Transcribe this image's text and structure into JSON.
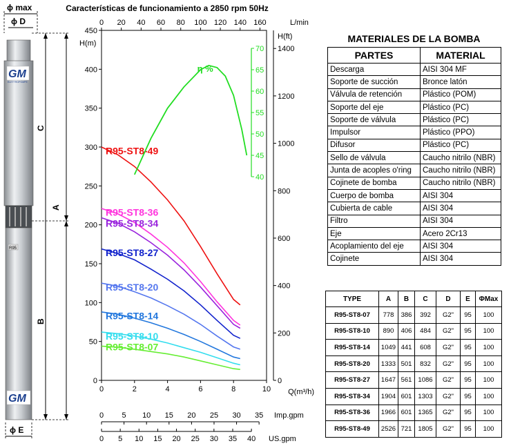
{
  "pump_drawing": {
    "label_phi_max": "ϕ max",
    "label_phi_d": "ϕ D",
    "label_phi_e": "ϕ E",
    "label_a": "A",
    "label_b": "B",
    "label_c": "C",
    "brand_text": "GM",
    "brand_subtext": "ELETTROPOMPE",
    "nameplate_text": "R95",
    "body_color": "#c7cbcf",
    "logo_color": "#1b3f8e"
  },
  "chart_data": {
    "type": "line",
    "title": "Características de funcionamiento a 2850 rpm 50Hz",
    "x_primary": {
      "label": "Q(m³/h)",
      "range": [
        0,
        10
      ],
      "ticks": [
        0,
        2,
        4,
        6,
        8,
        10
      ]
    },
    "x_top": {
      "label": "L/min",
      "range": [
        0,
        166.7
      ],
      "ticks": [
        0,
        20,
        40,
        60,
        80,
        100,
        120,
        140,
        160
      ]
    },
    "x_imp_gpm": {
      "label": "Imp.gpm",
      "ticks": [
        0,
        5,
        10,
        15,
        20,
        25,
        30,
        35
      ]
    },
    "x_us_gpm": {
      "label": "US.gpm",
      "ticks": [
        0,
        5,
        10,
        15,
        20,
        25,
        30,
        35,
        40
      ]
    },
    "y_left": {
      "label": "H(m)",
      "range": [
        0,
        450
      ],
      "ticks": [
        0,
        50,
        100,
        150,
        200,
        250,
        300,
        350,
        400,
        450
      ]
    },
    "y_right": {
      "label": "H(ft)",
      "ticks": [
        0,
        200,
        400,
        600,
        800,
        1000,
        1200,
        1400
      ]
    },
    "y_eff": {
      "label": "η %",
      "range": [
        40,
        70
      ],
      "ticks": [
        40,
        45,
        50,
        55,
        60,
        65,
        70
      ],
      "color": "#22dd22"
    },
    "series": [
      {
        "name": "R95-ST8-49",
        "color": "#ee1111",
        "x": [
          0,
          1,
          2,
          3,
          4,
          5,
          6,
          7,
          8,
          8.4
        ],
        "y": [
          300,
          290,
          275,
          255,
          232,
          205,
          172,
          137,
          104,
          97
        ]
      },
      {
        "name": "R95-ST8-36",
        "color": "#ff33dd",
        "x": [
          0,
          1,
          2,
          3,
          4,
          5,
          6,
          7,
          8,
          8.4
        ],
        "y": [
          221,
          214,
          203,
          188,
          171,
          151,
          127,
          101,
          77,
          71
        ]
      },
      {
        "name": "R95-ST8-34",
        "color": "#9922dd",
        "x": [
          0,
          1,
          2,
          3,
          4,
          5,
          6,
          7,
          8,
          8.4
        ],
        "y": [
          209,
          202,
          191,
          177,
          161,
          142,
          120,
          96,
          72,
          67
        ]
      },
      {
        "name": "R95-ST8-27",
        "color": "#1122cc",
        "x": [
          0,
          1,
          2,
          3,
          4,
          5,
          6,
          7,
          8,
          8.4
        ],
        "y": [
          169,
          163,
          155,
          143,
          130,
          115,
          97,
          77,
          58,
          54
        ]
      },
      {
        "name": "R95-ST8-20",
        "color": "#5577ee",
        "x": [
          0,
          1,
          2,
          3,
          4,
          5,
          6,
          7,
          8,
          8.4
        ],
        "y": [
          125,
          121,
          114,
          106,
          96,
          85,
          72,
          57,
          43,
          40
        ]
      },
      {
        "name": "R95-ST8-14",
        "color": "#2277dd",
        "x": [
          0,
          1,
          2,
          3,
          4,
          5,
          6,
          7,
          8,
          8.4
        ],
        "y": [
          88,
          85,
          80,
          74,
          67,
          59,
          50,
          40,
          30,
          28
        ]
      },
      {
        "name": "R95-ST8-10",
        "color": "#33ddee",
        "x": [
          0,
          1,
          2,
          3,
          4,
          5,
          6,
          7,
          8,
          8.4
        ],
        "y": [
          62,
          60,
          57,
          53,
          48,
          42,
          36,
          29,
          22,
          20
        ]
      },
      {
        "name": "R95-ST8-07",
        "color": "#66ee33",
        "x": [
          0,
          1,
          2,
          3,
          4,
          5,
          6,
          7,
          8,
          8.4
        ],
        "y": [
          44,
          42.5,
          40,
          37,
          34,
          30,
          25,
          20,
          15,
          14
        ]
      }
    ],
    "efficiency": {
      "name": "η %",
      "color": "#22dd22",
      "x": [
        2,
        3,
        4,
        5,
        6,
        6.5,
        7,
        7.5,
        8,
        8.5,
        8.8
      ],
      "y": [
        40.5,
        49,
        56,
        61,
        65,
        66,
        65.5,
        63.5,
        59,
        51,
        45
      ]
    }
  },
  "materials": {
    "title": "MATERIALES DE LA BOMBA",
    "headers": [
      "PARTES",
      "MATERIAL"
    ],
    "rows": [
      [
        "Descarga",
        "AISI 304 MF"
      ],
      [
        "Soporte de succión",
        "Bronce latón"
      ],
      [
        "Válvula de retención",
        "Plástico (POM)"
      ],
      [
        "Soporte del eje",
        "Plástico (PC)"
      ],
      [
        "Soporte de válvula",
        "Plástico (PC)"
      ],
      [
        "Impulsor",
        "Plástico (PPO)"
      ],
      [
        "Difusor",
        "Plástico (PC)"
      ],
      [
        "Sello de válvula",
        "Caucho nitrilo (NBR)"
      ],
      [
        "Junta de acoples o'ring",
        "Caucho nitrilo (NBR)"
      ],
      [
        "Cojinete de bomba",
        "Caucho nitrilo (NBR)"
      ],
      [
        "Cuerpo de bomba",
        "AISI 304"
      ],
      [
        "Cubierta de cable",
        "AISI 304"
      ],
      [
        "Filtro",
        "AISI 304"
      ],
      [
        "Eje",
        "Acero 2Cr13"
      ],
      [
        "Acoplamiento del eje",
        "AISI 304"
      ],
      [
        "Cojinete",
        "AISI 304"
      ]
    ]
  },
  "dimensions": {
    "headers": [
      "TYPE",
      "A",
      "B",
      "C",
      "D",
      "E",
      "ΦMax"
    ],
    "rows": [
      [
        "R95-ST8-07",
        "778",
        "386",
        "392",
        "G2\"",
        "95",
        "100"
      ],
      [
        "R95-ST8-10",
        "890",
        "406",
        "484",
        "G2\"",
        "95",
        "100"
      ],
      [
        "R95-ST8-14",
        "1049",
        "441",
        "608",
        "G2\"",
        "95",
        "100"
      ],
      [
        "R95-ST8-20",
        "1333",
        "501",
        "832",
        "G2\"",
        "95",
        "100"
      ],
      [
        "R95-ST8-27",
        "1647",
        "561",
        "1086",
        "G2\"",
        "95",
        "100"
      ],
      [
        "R95-ST8-34",
        "1904",
        "601",
        "1303",
        "G2\"",
        "95",
        "100"
      ],
      [
        "R95-ST8-36",
        "1966",
        "601",
        "1365",
        "G2\"",
        "95",
        "100"
      ],
      [
        "R95-ST8-49",
        "2526",
        "721",
        "1805",
        "G2\"",
        "95",
        "100"
      ]
    ]
  }
}
